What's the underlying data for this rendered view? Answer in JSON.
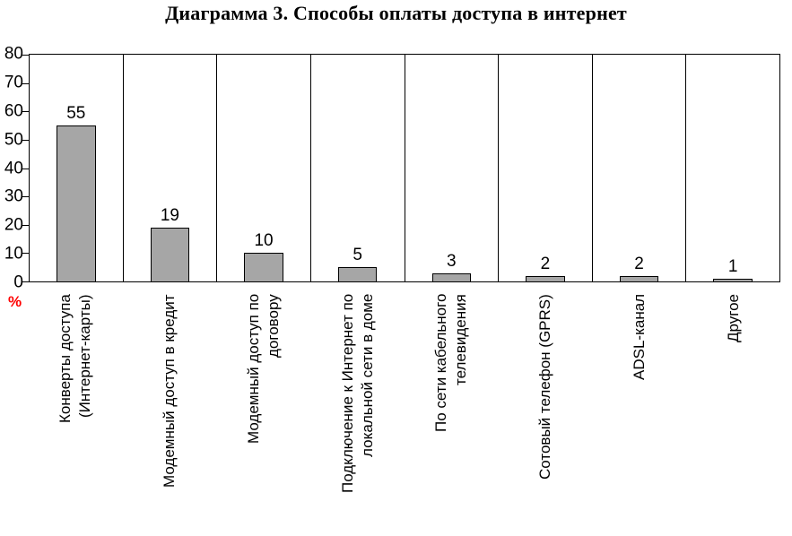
{
  "title": "Диаграмма 3. Способы оплаты доступа в интернет",
  "y_axis": {
    "unit_label": "%",
    "unit_color": "#ff0000"
  },
  "chart_data": {
    "type": "bar",
    "title": "Диаграмма 3. Способы оплаты доступа в интернет",
    "categories": [
      "Конверты доступа (Интернет-карты)",
      "Модемный доступ в кредит",
      "Модемный доступ по договору",
      "Подключение к Интернет по локальной сети в доме",
      "По сети кабельного телевидения",
      "Сотовый телефон (GPRS)",
      "ADSL-канал",
      "Другое"
    ],
    "categories_wrapped": [
      [
        "Конверты доступа",
        "(Интернет-карты)"
      ],
      [
        "Модемный доступ в кредит"
      ],
      [
        "Модемный доступ по",
        "договору"
      ],
      [
        "Подключение к Интернет по",
        "локальной сети в доме"
      ],
      [
        "По сети кабельного",
        "телевидения"
      ],
      [
        "Сотовый телефон (GPRS)"
      ],
      [
        "ADSL-канал"
      ],
      [
        "Другое"
      ]
    ],
    "values": [
      55,
      19,
      10,
      5,
      3,
      2,
      2,
      1
    ],
    "xlabel": "",
    "ylabel": "%",
    "ylim": [
      0,
      80
    ],
    "ytick_step": 10,
    "yticks": [
      0,
      10,
      20,
      30,
      40,
      50,
      60,
      70,
      80
    ],
    "grid": "vertical-category-separators",
    "legend": "none",
    "bar_color": "#a6a6a6",
    "bar_border_color": "#000000",
    "data_labels": "above-bars"
  }
}
